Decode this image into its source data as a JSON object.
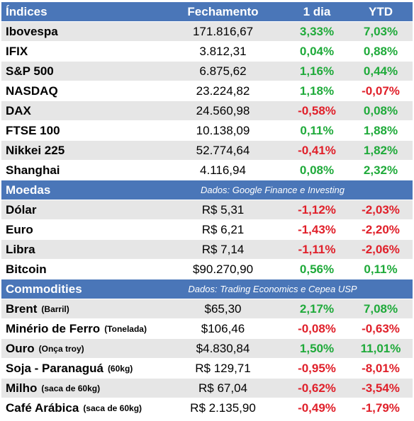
{
  "header": {
    "name": "Índices",
    "close": "Fechamento",
    "day": "1 dia",
    "ytd": "YTD"
  },
  "indices": [
    {
      "name": "Ibovespa",
      "close": "171.816,67",
      "day": "3,33%",
      "ytd": "7,03%"
    },
    {
      "name": "IFIX",
      "close": "3.812,31",
      "day": "0,04%",
      "ytd": "0,88%"
    },
    {
      "name": "S&P 500",
      "close": "6.875,62",
      "day": "1,16%",
      "ytd": "0,44%"
    },
    {
      "name": "NASDAQ",
      "close": "23.224,82",
      "day": "1,18%",
      "ytd": "-0,07%"
    },
    {
      "name": "DAX",
      "close": "24.560,98",
      "day": "-0,58%",
      "ytd": "0,08%"
    },
    {
      "name": "FTSE 100",
      "close": "10.138,09",
      "day": "0,11%",
      "ytd": "1,88%"
    },
    {
      "name": "Nikkei 225",
      "close": "52.774,64",
      "day": "-0,41%",
      "ytd": "1,82%"
    },
    {
      "name": "Shanghai",
      "close": "4.116,94",
      "day": "0,08%",
      "ytd": "2,32%"
    }
  ],
  "currencies_section": {
    "title": "Moedas",
    "note": "Dados: Google Finance e Investing"
  },
  "currencies": [
    {
      "name": "Dólar",
      "close": "R$ 5,31",
      "day": "-1,12%",
      "ytd": "-2,03%"
    },
    {
      "name": "Euro",
      "close": "R$ 6,21",
      "day": "-1,43%",
      "ytd": "-2,20%"
    },
    {
      "name": "Libra",
      "close": "R$ 7,14",
      "day": "-1,11%",
      "ytd": "-2,06%"
    },
    {
      "name": "Bitcoin",
      "close": "$90.270,90",
      "day": "0,56%",
      "ytd": "0,11%"
    }
  ],
  "commodities_section": {
    "title": "Commodities",
    "note": "Dados: Trading Economics e Cepea USP"
  },
  "commodities": [
    {
      "name": "Brent",
      "unit": "(Barril)",
      "close": "$65,30",
      "day": "2,17%",
      "ytd": "7,08%"
    },
    {
      "name": "Minério de Ferro",
      "unit": "(Tonelada)",
      "close": "$106,46",
      "day": "-0,08%",
      "ytd": "-0,63%"
    },
    {
      "name": "Ouro",
      "unit": "(Onça troy)",
      "close": "$4.830,84",
      "day": "1,50%",
      "ytd": "11,01%"
    },
    {
      "name": "Soja - Paranaguá",
      "unit": "(60kg)",
      "close": "R$ 129,71",
      "day": "-0,95%",
      "ytd": "-8,01%"
    },
    {
      "name": "Milho",
      "unit": "(saca de 60kg)",
      "close": "R$ 67,04",
      "day": "-0,62%",
      "ytd": "-3,54%"
    },
    {
      "name": "Café Arábica",
      "unit": "(saca de 60kg)",
      "close": "R$ 2.135,90",
      "day": "-0,49%",
      "ytd": "-1,79%"
    }
  ],
  "colors": {
    "header_bg": "#4a76b8",
    "positive": "#1faa3a",
    "negative": "#e0202a",
    "stripe": "#e6e6e6"
  }
}
